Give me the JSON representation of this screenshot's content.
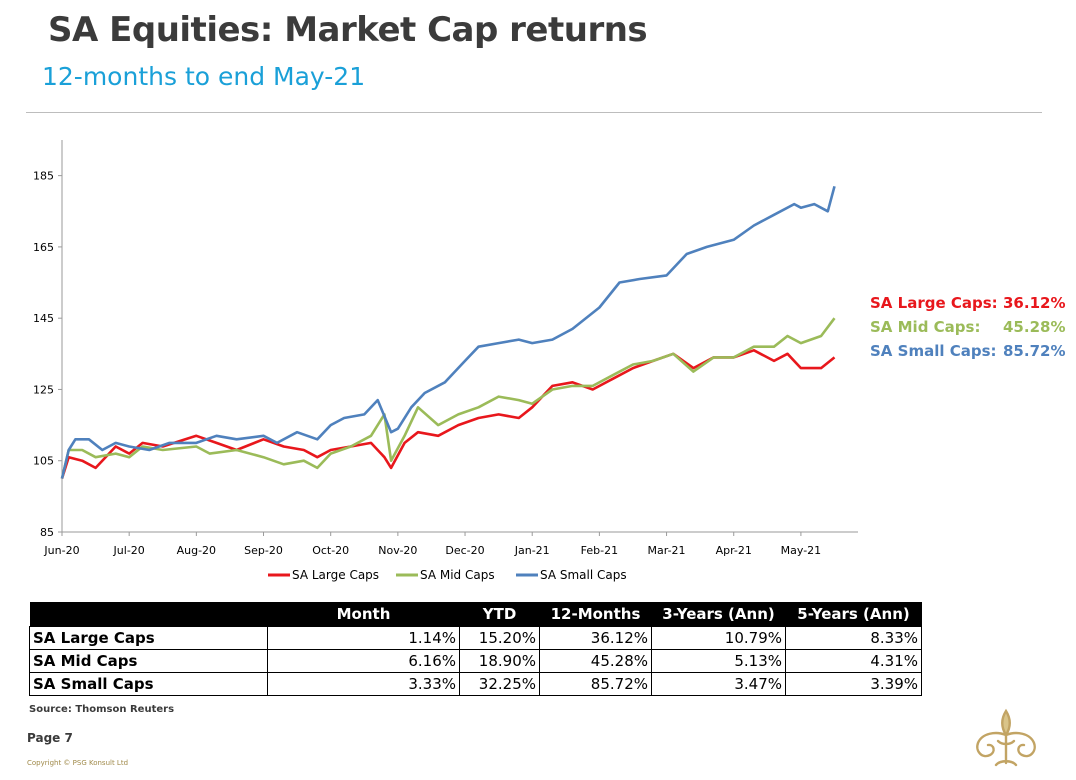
{
  "header": {
    "title": "SA Equities: Market Cap returns",
    "subtitle": "12-months to end  May-21"
  },
  "colors": {
    "large": "#e8171c",
    "mid": "#9bbb59",
    "small": "#4f81bd",
    "accent_blue": "#1aa0d8",
    "logo_gold": "#c2a464"
  },
  "returns": [
    {
      "label": "SA Large Caps:",
      "value": "36.12%",
      "color": "#e8171c"
    },
    {
      "label": "SA Mid Caps:",
      "value": "45.28%",
      "color": "#9bbb59"
    },
    {
      "label": "SA Small Caps:",
      "value": "85.72%",
      "color": "#4f81bd"
    }
  ],
  "chart_data": {
    "type": "line",
    "title": "",
    "xlabel": "",
    "ylabel": "",
    "categories": [
      "Jun-20",
      "Jul-20",
      "Aug-20",
      "Sep-20",
      "Oct-20",
      "Nov-20",
      "Dec-20",
      "Jan-21",
      "Feb-21",
      "Mar-21",
      "Apr-21",
      "May-21"
    ],
    "ylim": [
      85,
      195
    ],
    "yticks": [
      85,
      105,
      125,
      145,
      165,
      185
    ],
    "grid": false,
    "legend": "bottom",
    "series": [
      {
        "name": "SA Large Caps",
        "color": "#e8171c",
        "x": [
          0,
          0.1,
          0.3,
          0.5,
          0.8,
          1.0,
          1.2,
          1.5,
          2.0,
          2.3,
          2.6,
          3.0,
          3.3,
          3.6,
          3.8,
          4.0,
          4.3,
          4.6,
          4.8,
          4.9,
          5.1,
          5.3,
          5.6,
          5.9,
          6.2,
          6.5,
          6.8,
          7.0,
          7.3,
          7.6,
          7.9,
          8.2,
          8.5,
          8.8,
          9.1,
          9.4,
          9.7,
          10.0,
          10.3,
          10.6,
          10.8,
          11.0,
          11.3,
          11.5
        ],
        "values": [
          100,
          106,
          105,
          103,
          109,
          107,
          110,
          109,
          112,
          110,
          108,
          111,
          109,
          108,
          106,
          108,
          109,
          110,
          106,
          103,
          110,
          113,
          112,
          115,
          117,
          118,
          117,
          120,
          126,
          127,
          125,
          128,
          131,
          133,
          135,
          131,
          134,
          134,
          136,
          133,
          135,
          131,
          131,
          134
        ]
      },
      {
        "name": "SA Mid Caps",
        "color": "#9bbb59",
        "x": [
          0,
          0.1,
          0.3,
          0.5,
          0.8,
          1.0,
          1.2,
          1.5,
          2.0,
          2.2,
          2.6,
          3.0,
          3.3,
          3.6,
          3.8,
          4.0,
          4.3,
          4.6,
          4.8,
          4.9,
          5.1,
          5.3,
          5.6,
          5.9,
          6.2,
          6.5,
          6.8,
          7.0,
          7.3,
          7.6,
          7.9,
          8.2,
          8.5,
          8.8,
          9.1,
          9.4,
          9.7,
          10.0,
          10.3,
          10.6,
          10.8,
          11.0,
          11.3,
          11.5
        ],
        "values": [
          100,
          108,
          108,
          106,
          107,
          106,
          109,
          108,
          109,
          107,
          108,
          106,
          104,
          105,
          103,
          107,
          109,
          112,
          118,
          105,
          112,
          120,
          115,
          118,
          120,
          123,
          122,
          121,
          125,
          126,
          126,
          129,
          132,
          133,
          135,
          130,
          134,
          134,
          137,
          137,
          140,
          138,
          140,
          145
        ]
      },
      {
        "name": "SA Small Caps",
        "color": "#4f81bd",
        "x": [
          0,
          0.1,
          0.2,
          0.4,
          0.6,
          0.8,
          1.0,
          1.3,
          1.6,
          2.0,
          2.3,
          2.6,
          3.0,
          3.2,
          3.5,
          3.8,
          4.0,
          4.2,
          4.5,
          4.7,
          4.9,
          5.0,
          5.2,
          5.4,
          5.7,
          6.0,
          6.2,
          6.5,
          6.8,
          7.0,
          7.3,
          7.6,
          8.0,
          8.3,
          8.6,
          9.0,
          9.3,
          9.6,
          10.0,
          10.3,
          10.6,
          10.9,
          11.0,
          11.2,
          11.4,
          11.5
        ],
        "values": [
          100,
          108,
          111,
          111,
          108,
          110,
          109,
          108,
          110,
          110,
          112,
          111,
          112,
          110,
          113,
          111,
          115,
          117,
          118,
          122,
          113,
          114,
          120,
          124,
          127,
          133,
          137,
          138,
          139,
          138,
          139,
          142,
          148,
          155,
          156,
          157,
          163,
          165,
          167,
          171,
          174,
          177,
          176,
          177,
          175,
          182
        ]
      }
    ]
  },
  "table": {
    "columns": [
      "",
      "Month",
      "YTD",
      "12-Months",
      "3-Years (Ann)",
      "5-Years (Ann)"
    ],
    "rows": [
      {
        "name": "SA Large Caps",
        "values": [
          "1.14%",
          "15.20%",
          "36.12%",
          "10.79%",
          "8.33%"
        ]
      },
      {
        "name": "SA Mid Caps",
        "values": [
          "6.16%",
          "18.90%",
          "45.28%",
          "5.13%",
          "4.31%"
        ]
      },
      {
        "name": "SA Small Caps",
        "values": [
          "3.33%",
          "32.25%",
          "85.72%",
          "3.47%",
          "3.39%"
        ]
      }
    ]
  },
  "footer": {
    "source": "Source: Thomson Reuters",
    "page": "Page 7",
    "copyright": "Copyright © PSG Konsult Ltd"
  }
}
